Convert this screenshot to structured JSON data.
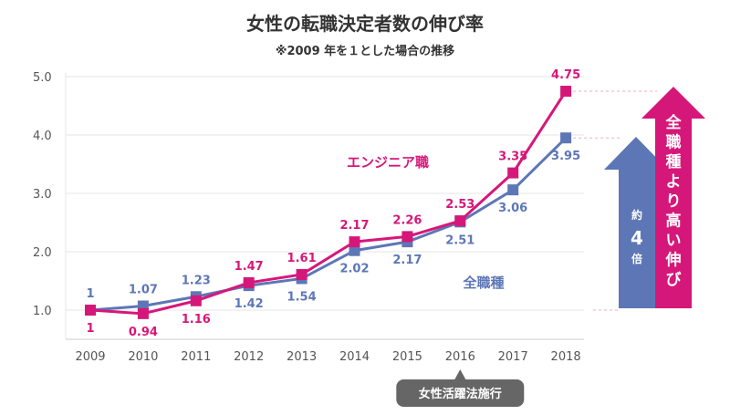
{
  "chart_data": {
    "type": "line",
    "title": "女性の転職決定者数の伸び率",
    "subtitle": "※2009 年を１とした場合の推移",
    "categories": [
      "2009",
      "2010",
      "2011",
      "2012",
      "2013",
      "2014",
      "2015",
      "2016",
      "2017",
      "2018"
    ],
    "yticks": [
      "1.0",
      "2.0",
      "3.0",
      "4.0",
      "5.0"
    ],
    "ylim": [
      1.0,
      5.0
    ],
    "grid": true,
    "series": [
      {
        "name": "エンジニア職",
        "color": "#d6177a",
        "values": [
          1,
          0.94,
          1.16,
          1.47,
          1.61,
          2.17,
          2.26,
          2.53,
          3.35,
          4.75
        ],
        "labels": [
          "1",
          "0.94",
          "1.16",
          "1.47",
          "1.61",
          "2.17",
          "2.26",
          "2.53",
          "3.35",
          "4.75"
        ]
      },
      {
        "name": "全職種",
        "color": "#5d77b6",
        "values": [
          1,
          1.07,
          1.23,
          1.42,
          1.54,
          2.02,
          2.17,
          2.51,
          3.06,
          3.95
        ],
        "labels": [
          "1",
          "1.07",
          "1.23",
          "1.42",
          "1.54",
          "2.02",
          "2.17",
          "2.51",
          "3.06",
          "3.95"
        ]
      }
    ],
    "annotations": {
      "event": {
        "category": "2016",
        "text": "女性活躍法施行"
      },
      "blue_arrow": {
        "lines": [
          "約",
          "4",
          "倍"
        ]
      },
      "pink_arrow": {
        "text": "全職種より高い伸び"
      }
    }
  }
}
